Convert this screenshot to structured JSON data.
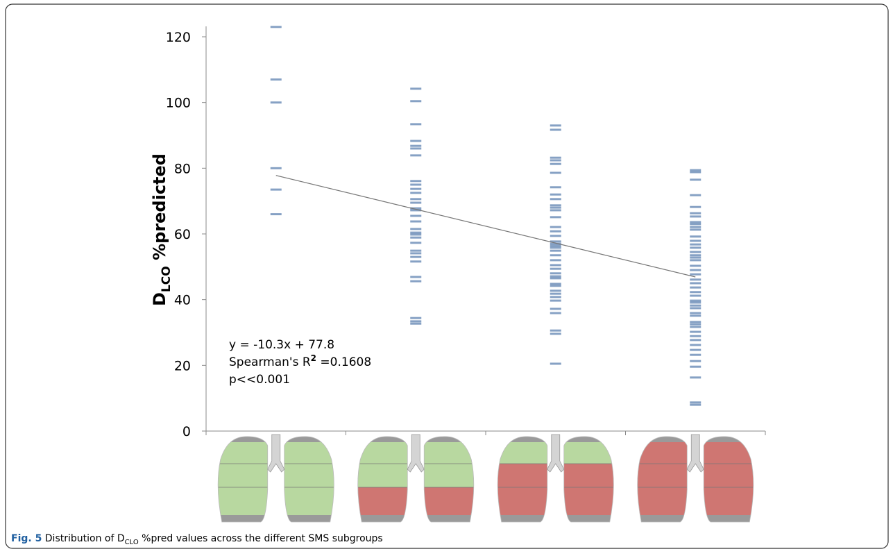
{
  "chart_data": {
    "type": "strip",
    "y_label": {
      "main": "D",
      "sub": "LCO",
      "rest": " %predicted"
    },
    "categories": [
      null,
      null,
      null,
      null
    ],
    "values": [
      [
        123,
        107,
        100,
        80,
        73.5,
        66
      ],
      [
        104.2,
        100.4,
        93.4,
        88.3,
        86.8,
        86,
        83.9,
        76.1,
        75,
        73.7,
        72.5,
        70.6,
        69.5,
        67.8,
        67.2,
        65.5,
        63.8,
        61.5,
        60.4,
        59.8,
        58.9,
        57.3,
        54.9,
        54.1,
        53,
        51.6,
        46.9,
        45.6,
        34.4,
        33.4,
        32.7
      ],
      [
        93,
        91.7,
        83.2,
        82.4,
        81.3,
        78.6,
        74.2,
        72,
        70.6,
        68.7,
        68,
        67.2,
        65.1,
        62.1,
        60.8,
        59.4,
        57.7,
        57,
        56.4,
        55.8,
        54.9,
        53.5,
        52,
        50.5,
        49.4,
        48,
        47.1,
        46.5,
        44.8,
        44.2,
        42.7,
        41.8,
        40.8,
        39.7,
        37.2,
        35.9,
        30.6,
        29.6,
        20.5
      ],
      [
        79.4,
        78.8,
        76.5,
        71.8,
        68.2,
        66.3,
        65.3,
        63.6,
        63,
        62.1,
        61.3,
        59.2,
        57.9,
        56.8,
        55.8,
        54.5,
        53.5,
        52.8,
        52,
        50.3,
        49,
        47.7,
        46.1,
        45,
        43.7,
        42.3,
        41.2,
        39.7,
        39.1,
        38.2,
        37.4,
        35.9,
        35.1,
        33.2,
        32.5,
        31.7,
        30.2,
        28.9,
        27.7,
        26.2,
        24.7,
        23.2,
        21.3,
        19.6,
        16.3,
        8.7,
        8
      ]
    ],
    "color": "#5d82b0",
    "trend_line": {
      "values": [
        77.8,
        67.5,
        57.2,
        46.9
      ],
      "color": "#777777"
    },
    "annotation": {
      "equation": "y = -10.3x + 77.8",
      "r_label": "Spearman's R",
      "r_sup": "2",
      "r_value": " =0.1608",
      "p": "p<<0.001"
    },
    "ylim": [
      0,
      120
    ],
    "yticks": [
      0,
      20,
      40,
      60,
      80,
      100,
      120
    ]
  },
  "caption": {
    "label": "Fig. 5",
    "text_a": " Distribution of D",
    "sub": "CLO",
    "text_b": " %pred values across the different SMS subgroups"
  }
}
